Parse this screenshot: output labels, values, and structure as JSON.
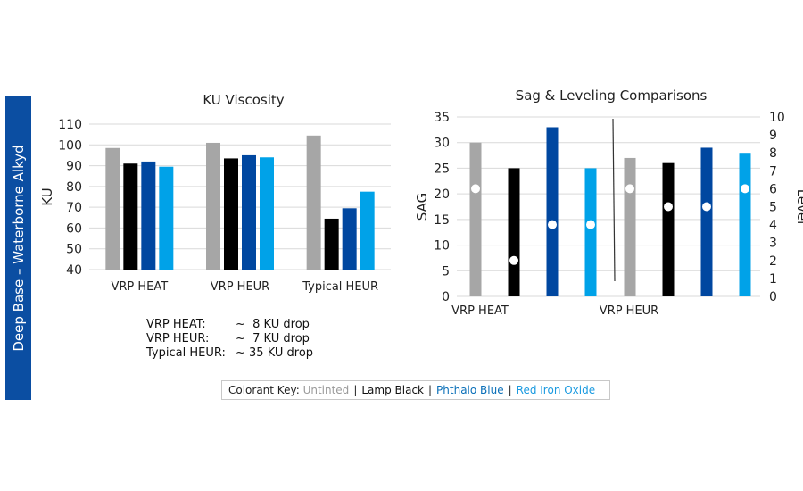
{
  "sidebar_title": "Deep Base – Waterborne Alkyd",
  "colors": {
    "untinted": "#A6A6A6",
    "lamp_black": "#000000",
    "phthalo_blue": "#0047A0",
    "red_iron_oxide": "#00A2E8",
    "sidebar": "#0B4EA2"
  },
  "chart_data": [
    {
      "type": "bar",
      "title": "KU Viscosity",
      "xlabel": "",
      "ylabel": "KU",
      "ylim": [
        40,
        110
      ],
      "yticks": [
        40,
        50,
        60,
        70,
        80,
        90,
        100,
        110
      ],
      "grid": true,
      "categories": [
        "VRP HEAT",
        "VRP HEUR",
        "Typical HEUR"
      ],
      "series": [
        {
          "name": "Untinted",
          "values": [
            98.5,
            101,
            104.5
          ]
        },
        {
          "name": "Lamp Black",
          "values": [
            91,
            93.5,
            64.5
          ]
        },
        {
          "name": "Phthalo Blue",
          "values": [
            92,
            95,
            69.5
          ]
        },
        {
          "name": "Red Iron Oxide",
          "values": [
            89.5,
            94,
            77.5
          ]
        }
      ]
    },
    {
      "type": "bar",
      "title": "Sag & Leveling Comparisons",
      "ylabel": "SAG",
      "y2label": "Level",
      "ylim": [
        0,
        35
      ],
      "yticks": [
        0,
        5,
        10,
        15,
        20,
        25,
        30,
        35
      ],
      "y2lim": [
        0,
        10
      ],
      "y2ticks": [
        0,
        1,
        2,
        3,
        4,
        5,
        6,
        7,
        8,
        9,
        10
      ],
      "grid": true,
      "categories": [
        "VRP HEAT",
        "VRP HEUR"
      ],
      "series": [
        {
          "name": "Untinted",
          "sag": [
            30,
            27
          ],
          "level": [
            6,
            6
          ]
        },
        {
          "name": "Lamp Black",
          "sag": [
            25,
            26
          ],
          "level": [
            2,
            5
          ]
        },
        {
          "name": "Phthalo Blue",
          "sag": [
            33,
            29
          ],
          "level": [
            4,
            5
          ]
        },
        {
          "name": "Red Iron Oxide",
          "sag": [
            25,
            28
          ],
          "level": [
            4,
            6
          ]
        }
      ]
    }
  ],
  "drops": [
    {
      "label": "VRP HEAT:",
      "value": "~  8 KU drop"
    },
    {
      "label": "VRP HEUR:",
      "value": "~  7 KU drop"
    },
    {
      "label": "Typical HEUR:",
      "value": "~ 35 KU drop"
    }
  ],
  "key": {
    "label": "Colorant Key:",
    "separator": "|",
    "items": [
      "Untinted",
      "Lamp Black",
      "Phthalo Blue",
      "Red Iron Oxide"
    ]
  }
}
